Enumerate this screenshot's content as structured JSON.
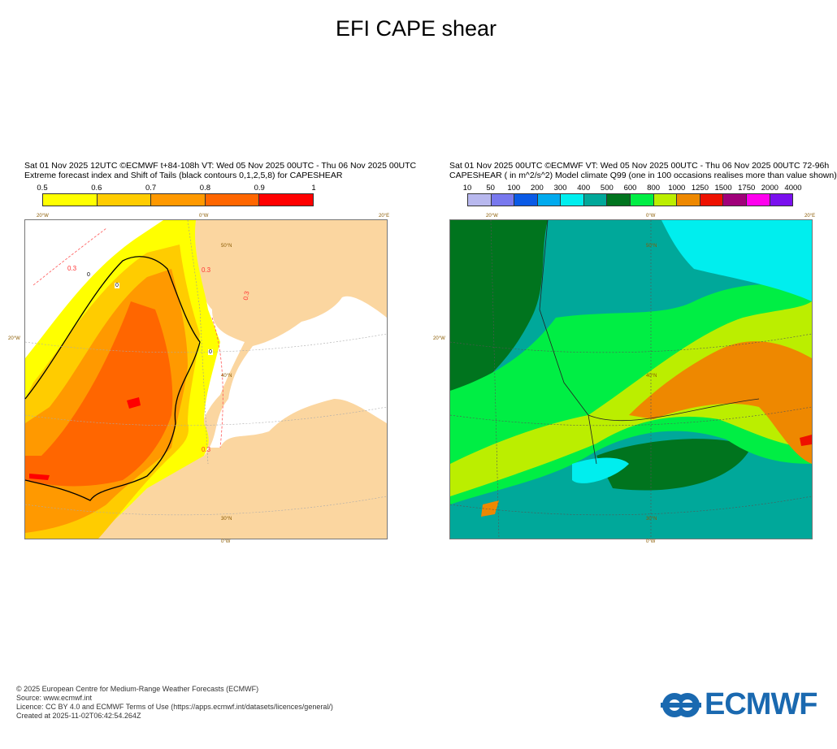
{
  "title": "EFI CAPE shear",
  "left_panel": {
    "header_line1": "Sat 01 Nov 2025 12UTC ©ECMWF t+84-108h  VT: Wed 05 Nov 2025 00UTC - Thu 06 Nov 2025 00UTC",
    "header_line2": "Extreme forecast index and Shift of Tails (black contours 0,1,2,5,8) for CAPESHEAR",
    "legend_ticks": [
      "0.5",
      "0.6",
      "0.7",
      "0.8",
      "0.9",
      "1"
    ],
    "legend_colors": [
      "#ffff00",
      "#ffcc00",
      "#ff9900",
      "#ff6600",
      "#ff0000"
    ],
    "contour_labels": [
      "0.3",
      "0.3",
      "0.3",
      "0.3",
      "0",
      "0",
      "0"
    ],
    "grid_labels": {
      "top": [
        "20°W",
        "0°W",
        "20°E"
      ],
      "left": "20°W",
      "lat": [
        "50°N",
        "40°N",
        "30°N"
      ],
      "bottom": "0°W"
    }
  },
  "right_panel": {
    "header_line1": "Sat 01 Nov 2025 00UTC ©ECMWF VT: Wed 05 Nov 2025 00UTC - Thu 06 Nov 2025 00UTC    72-96h",
    "header_line2": "CAPESHEAR ( in m^2/s^2)   Model climate Q99 (one in 100 occasions realises more than value shown)",
    "legend_ticks": [
      "10",
      "50",
      "100",
      "200",
      "300",
      "400",
      "500",
      "600",
      "800",
      "1000",
      "1250",
      "1500",
      "1750",
      "2000",
      "4000"
    ],
    "legend_colors": [
      "#b8b8ee",
      "#7878ee",
      "#0a5ae6",
      "#00aaee",
      "#00eeee",
      "#00a89a",
      "#00741e",
      "#00ee44",
      "#bbee00",
      "#ee8800",
      "#ee1100",
      "#a0007a",
      "#ff00ee",
      "#7a10ee"
    ],
    "grid_labels": {
      "top": [
        "20°W",
        "0°W",
        "20°E"
      ],
      "left": "20°W",
      "lat": [
        "50°N",
        "40°N",
        "30°N"
      ],
      "bottom": "0°W"
    }
  },
  "chart_data": [
    {
      "type": "heatmap",
      "title": "EFI CAPE shear",
      "subtitle": "Extreme forecast index and Shift of Tails (black contours 0,1,2,5,8) for CAPESHEAR",
      "colorbar": {
        "bounds": [
          0.5,
          0.6,
          0.7,
          0.8,
          0.9,
          1
        ]
      },
      "region": "Western Europe / North Africa"
    },
    {
      "type": "heatmap",
      "subtitle": "CAPESHEAR ( in m^2/s^2) Model climate Q99",
      "colorbar": {
        "bounds": [
          10,
          50,
          100,
          200,
          300,
          400,
          500,
          600,
          800,
          1000,
          1250,
          1500,
          1750,
          2000,
          4000
        ]
      },
      "region": "Western Europe / North Africa"
    }
  ],
  "footer": {
    "lines": [
      "© 2025 European Centre for Medium-Range Weather Forecasts (ECMWF)",
      "Source: www.ecmwf.int",
      "Licence: CC BY 4.0 and ECMWF Terms of Use (https://apps.ecmwf.int/datasets/licences/general/)",
      "Created at 2025-11-02T06:42:54.264Z"
    ],
    "logo_text": "ECMWF"
  }
}
